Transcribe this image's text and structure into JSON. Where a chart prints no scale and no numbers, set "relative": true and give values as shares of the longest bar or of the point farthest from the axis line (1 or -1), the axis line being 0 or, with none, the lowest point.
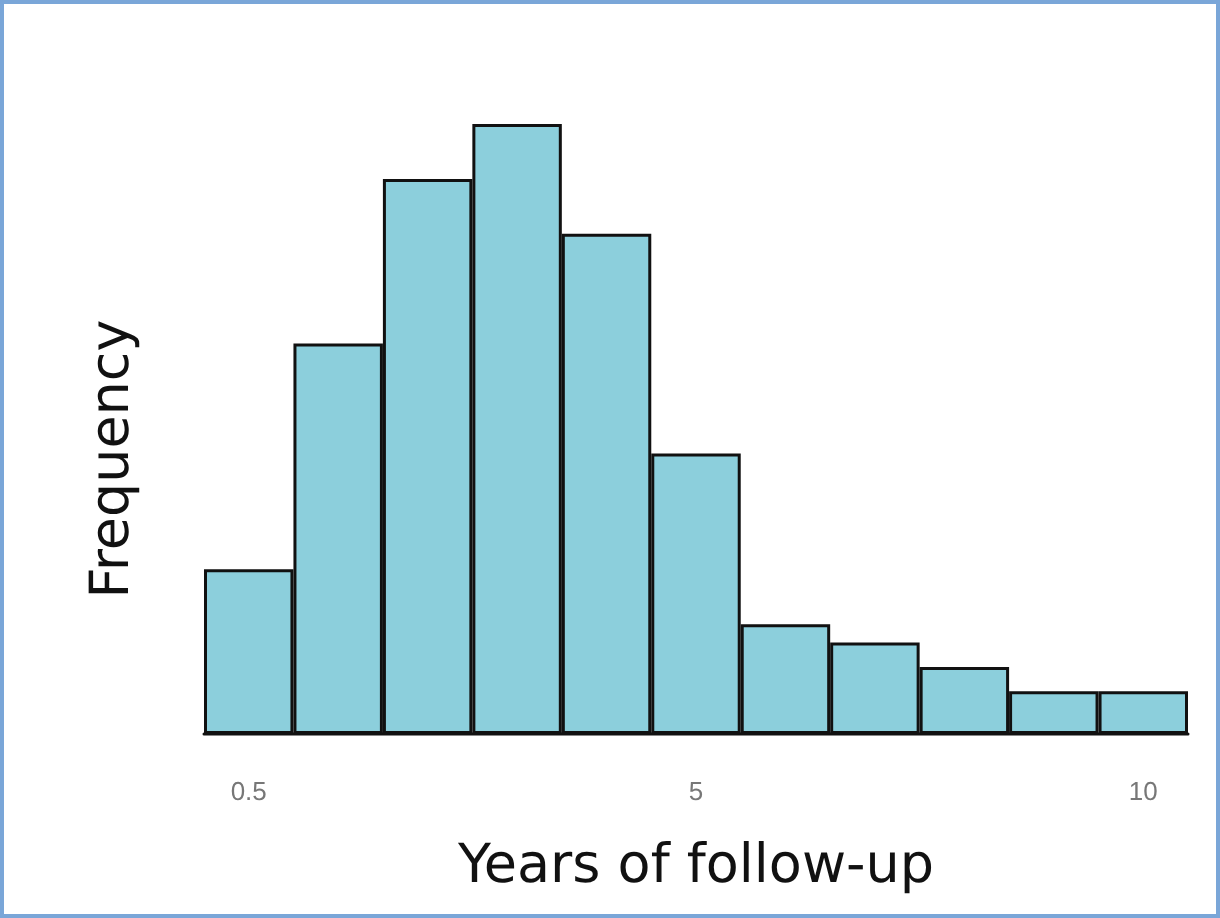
{
  "chart_data": {
    "type": "bar",
    "relative": true,
    "xlabel": "Years of follow-up",
    "ylabel": "Frequency",
    "categories": [
      "0.5",
      null,
      null,
      null,
      null,
      "5",
      null,
      null,
      null,
      null,
      "10"
    ],
    "values": [
      0.27,
      0.64,
      0.91,
      1,
      0.82,
      0.46,
      0.18,
      0.15,
      0.11,
      0.07,
      0.07
    ],
    "color": "#8ccfdc"
  }
}
